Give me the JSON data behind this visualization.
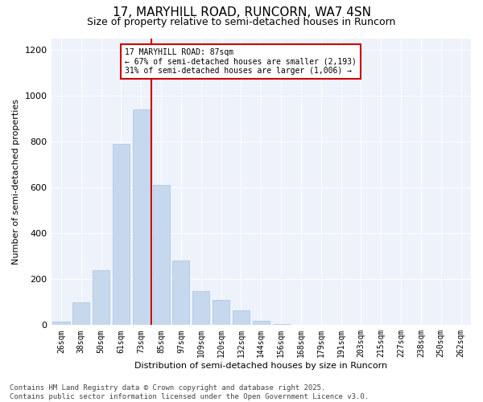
{
  "title_line1": "17, MARYHILL ROAD, RUNCORN, WA7 4SN",
  "title_line2": "Size of property relative to semi-detached houses in Runcorn",
  "xlabel": "Distribution of semi-detached houses by size in Runcorn",
  "ylabel": "Number of semi-detached properties",
  "annotation_title": "17 MARYHILL ROAD: 87sqm",
  "annotation_line2": "← 67% of semi-detached houses are smaller (2,193)",
  "annotation_line3": "31% of semi-detached houses are larger (1,006) →",
  "footer_line1": "Contains HM Land Registry data © Crown copyright and database right 2025.",
  "footer_line2": "Contains public sector information licensed under the Open Government Licence v3.0.",
  "categories": [
    "26sqm",
    "38sqm",
    "50sqm",
    "61sqm",
    "73sqm",
    "85sqm",
    "97sqm",
    "109sqm",
    "120sqm",
    "132sqm",
    "144sqm",
    "156sqm",
    "168sqm",
    "179sqm",
    "191sqm",
    "203sqm",
    "215sqm",
    "227sqm",
    "238sqm",
    "250sqm",
    "262sqm"
  ],
  "values": [
    15,
    100,
    240,
    790,
    940,
    610,
    280,
    150,
    110,
    65,
    20,
    5,
    0,
    0,
    0,
    0,
    0,
    0,
    0,
    0,
    0
  ],
  "bar_color": "#c5d8ed",
  "bar_edge_color": "#a8c4de",
  "vline_color": "#cc0000",
  "annotation_box_color": "#cc0000",
  "background_color": "#eef2fa",
  "ylim": [
    0,
    1250
  ],
  "yticks": [
    0,
    200,
    400,
    600,
    800,
    1000,
    1200
  ],
  "title_fontsize": 11,
  "subtitle_fontsize": 9,
  "axis_fontsize": 8,
  "tick_fontsize": 7,
  "footer_fontsize": 6.5,
  "annot_fontsize": 7
}
